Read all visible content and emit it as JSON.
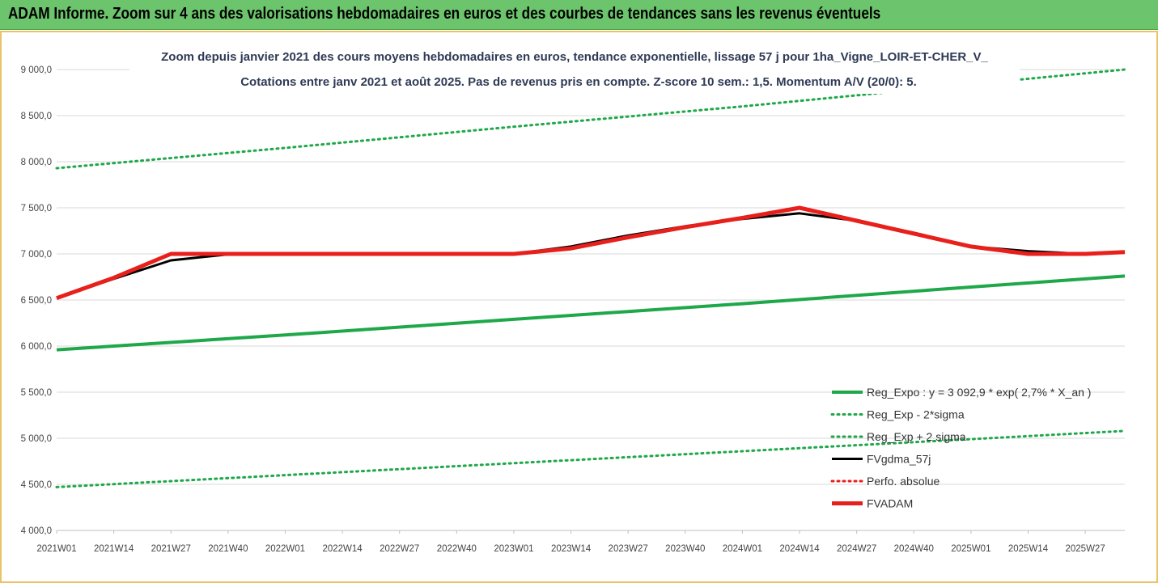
{
  "banner": {
    "title": "ADAM Informe. Zoom sur 4 ans des valorisations hebdomadaires en euros et des courbes de tendances sans les revenus éventuels"
  },
  "colors": {
    "banner_bg": "#6cc46c",
    "frame_border": "#e8c36a",
    "green": "#1fa84a",
    "black": "#000000",
    "red": "#e8201c"
  },
  "chart_data": {
    "type": "line",
    "title": "Zoom depuis janvier 2021 des cours moyens hebdomadaires en euros, tendance exponentielle, lissage 57 j pour 1ha_Vigne_LOIR-ET-CHER_V_",
    "subtitle": "Cotations entre janv 2021 et août 2025.  Pas de revenus pris en compte. Z-score 10 sem.: 1,5. Momentum A/V (20/0): 5.",
    "ylim": [
      4000,
      9000
    ],
    "yticks": [
      "4 000,0",
      "4 500,0",
      "5 000,0",
      "5 500,0",
      "6 000,0",
      "6 500,0",
      "7 000,0",
      "7 500,0",
      "8 000,0",
      "8 500,0",
      "9 000,0"
    ],
    "x_ticks": [
      "2021W01",
      "2021W14",
      "2021W27",
      "2021W40",
      "2022W01",
      "2022W14",
      "2022W27",
      "2022W40",
      "2023W01",
      "2023W14",
      "2023W27",
      "2023W40",
      "2024W01",
      "2024W14",
      "2024W27",
      "2024W40",
      "2025W01",
      "2025W14",
      "2025W27"
    ],
    "x_range_weeks": [
      0,
      243
    ],
    "grid": "horizontal",
    "legend_position": "bottom-right",
    "series": [
      {
        "name": "Reg_Expo : y = 3 092,9 * exp( 2,7% *  X_an )",
        "style": "solid-thick",
        "color": "#1fa84a",
        "points": [
          [
            0,
            5960
          ],
          [
            52,
            6120
          ],
          [
            104,
            6290
          ],
          [
            156,
            6460
          ],
          [
            208,
            6640
          ],
          [
            243,
            6760
          ]
        ]
      },
      {
        "name": "Reg_Exp - 2*sigma",
        "style": "dotted",
        "color": "#1fa84a",
        "points": [
          [
            0,
            4470
          ],
          [
            52,
            4600
          ],
          [
            104,
            4730
          ],
          [
            156,
            4860
          ],
          [
            208,
            4990
          ],
          [
            243,
            5080
          ]
        ]
      },
      {
        "name": "Reg_Exp + 2 sigma",
        "style": "dotted",
        "color": "#1fa84a",
        "points": [
          [
            0,
            7930
          ],
          [
            52,
            8150
          ],
          [
            104,
            8380
          ],
          [
            156,
            8600
          ],
          [
            208,
            8840
          ],
          [
            243,
            9000
          ]
        ]
      },
      {
        "name": "FVgdma_57j",
        "style": "solid",
        "color": "#000000",
        "points": [
          [
            0,
            6520
          ],
          [
            13,
            6730
          ],
          [
            26,
            6930
          ],
          [
            39,
            6995
          ],
          [
            52,
            7000
          ],
          [
            78,
            7000
          ],
          [
            104,
            7000
          ],
          [
            117,
            7080
          ],
          [
            130,
            7200
          ],
          [
            143,
            7300
          ],
          [
            156,
            7380
          ],
          [
            169,
            7440
          ],
          [
            182,
            7360
          ],
          [
            195,
            7230
          ],
          [
            208,
            7080
          ],
          [
            221,
            7030
          ],
          [
            234,
            7000
          ],
          [
            243,
            7020
          ]
        ]
      },
      {
        "name": "Perfo. absolue",
        "style": "dotted",
        "color": "#e8201c",
        "points": []
      },
      {
        "name": "FVADAM",
        "style": "solid-thick",
        "color": "#e8201c",
        "points": [
          [
            0,
            6520
          ],
          [
            13,
            6740
          ],
          [
            26,
            7000
          ],
          [
            39,
            7000
          ],
          [
            52,
            7000
          ],
          [
            78,
            7000
          ],
          [
            104,
            7000
          ],
          [
            117,
            7060
          ],
          [
            130,
            7180
          ],
          [
            143,
            7290
          ],
          [
            156,
            7390
          ],
          [
            169,
            7500
          ],
          [
            182,
            7360
          ],
          [
            195,
            7220
          ],
          [
            208,
            7080
          ],
          [
            221,
            7000
          ],
          [
            234,
            7000
          ],
          [
            243,
            7020
          ]
        ]
      }
    ]
  }
}
